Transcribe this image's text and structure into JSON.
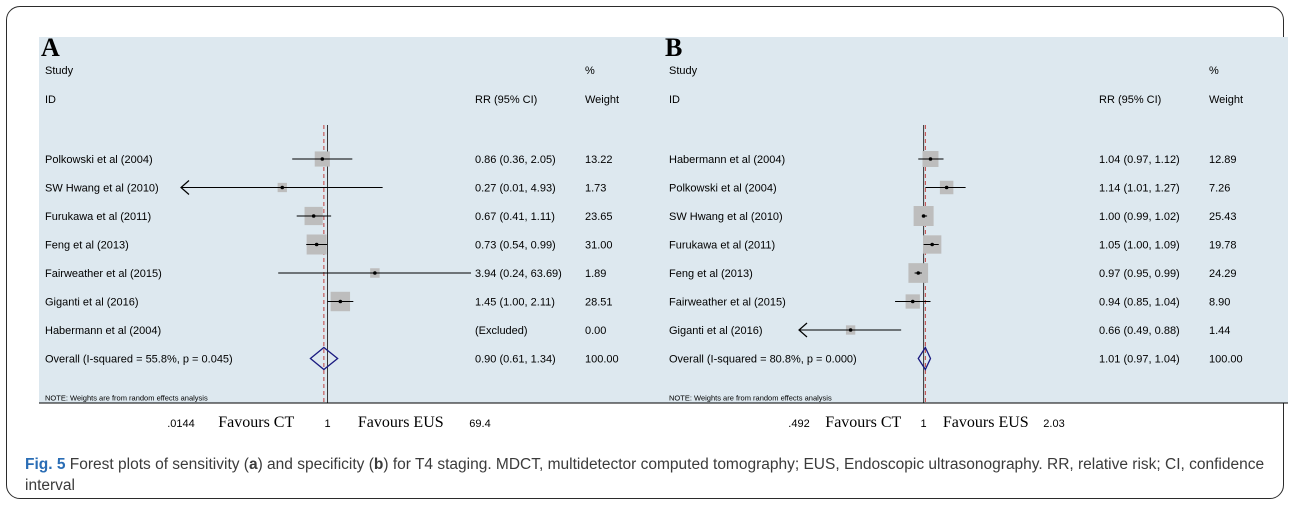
{
  "caption": {
    "fig": "Fig. 5",
    "parts": [
      "Forest plots of sensitivity (",
      "a",
      ") and specificity (",
      "b",
      ") for T4 staging. MDCT, multidetector computed tomography; EUS, Endoscopic ultrasonography. RR, relative risk; CI, confidence interval"
    ]
  },
  "colors": {
    "background": "#dde8ef",
    "box": "#bdbdbd",
    "diamond": "#1a1a80",
    "reference": "#c04040",
    "line": "#000000"
  },
  "chart_data": [
    {
      "type": "forest",
      "panel_label": "A",
      "headers": {
        "study": "Study",
        "id": "ID",
        "rr": "RR (95% CI)",
        "pct": "%",
        "weight": "Weight"
      },
      "scale": "log",
      "xlim": [
        0.0144,
        69.4
      ],
      "x_ticks": [
        ".0144",
        "1",
        "69.4"
      ],
      "favours_left": "Favours CT",
      "favours_right": "Favours EUS",
      "overall_rr": 0.9,
      "rows": [
        {
          "study": "Polkowski et al (2004)",
          "rr": 0.86,
          "lo": 0.36,
          "hi": 2.05,
          "weight_val": 13.22,
          "rr_text": "0.86 (0.36, 2.05)",
          "weight": "13.22"
        },
        {
          "study": "SW Hwang et al (2010)",
          "rr": 0.27,
          "lo": 0.01,
          "hi": 4.93,
          "weight_val": 1.73,
          "rr_text": "0.27 (0.01, 4.93)",
          "weight": "1.73"
        },
        {
          "study": "Furukawa et al  (2011)",
          "rr": 0.67,
          "lo": 0.41,
          "hi": 1.11,
          "weight_val": 23.65,
          "rr_text": "0.67 (0.41, 1.11)",
          "weight": "23.65"
        },
        {
          "study": "Feng et al (2013)",
          "rr": 0.73,
          "lo": 0.54,
          "hi": 0.99,
          "weight_val": 31.0,
          "rr_text": "0.73 (0.54, 0.99)",
          "weight": "31.00"
        },
        {
          "study": "Fairweather et al (2015)",
          "rr": 3.94,
          "lo": 0.24,
          "hi": 63.69,
          "weight_val": 1.89,
          "rr_text": "3.94 (0.24, 63.69)",
          "weight": "1.89"
        },
        {
          "study": "Giganti et al (2016)",
          "rr": 1.45,
          "lo": 1.0,
          "hi": 2.11,
          "weight_val": 28.51,
          "rr_text": "1.45 (1.00, 2.11)",
          "weight": "28.51"
        },
        {
          "study": "Habermann et al (2004)",
          "excluded": true,
          "rr_text": "(Excluded)",
          "weight": "0.00"
        }
      ],
      "overall": {
        "label": "Overall  (I-squared = 55.8%, p = 0.045)",
        "rr": 0.9,
        "lo": 0.61,
        "hi": 1.34,
        "rr_text": "0.90 (0.61, 1.34)",
        "weight": "100.00"
      },
      "note": "NOTE: Weights are from random effects analysis"
    },
    {
      "type": "forest",
      "panel_label": "B",
      "headers": {
        "study": "Study",
        "id": "ID",
        "rr": "RR (95% CI)",
        "pct": "%",
        "weight": "Weight"
      },
      "scale": "log",
      "xlim": [
        0.492,
        2.03
      ],
      "x_ticks": [
        ".492",
        "1",
        "2.03"
      ],
      "favours_left": "Favours CT",
      "favours_right": "Favours EUS",
      "overall_rr": 1.01,
      "rows": [
        {
          "study": "Habermann et al (2004)",
          "rr": 1.04,
          "lo": 0.97,
          "hi": 1.12,
          "weight_val": 12.89,
          "rr_text": "1.04 (0.97, 1.12)",
          "weight": "12.89"
        },
        {
          "study": "Polkowski et al (2004)",
          "rr": 1.14,
          "lo": 1.01,
          "hi": 1.27,
          "weight_val": 7.26,
          "rr_text": "1.14 (1.01, 1.27)",
          "weight": "7.26"
        },
        {
          "study": "SW Hwang et al (2010)",
          "rr": 1.0,
          "lo": 0.99,
          "hi": 1.02,
          "weight_val": 25.43,
          "rr_text": "1.00 (0.99, 1.02)",
          "weight": "25.43"
        },
        {
          "study": "Furukawa et al  (2011)",
          "rr": 1.05,
          "lo": 1.0,
          "hi": 1.09,
          "weight_val": 19.78,
          "rr_text": "1.05 (1.00, 1.09)",
          "weight": "19.78"
        },
        {
          "study": "Feng et al (2013)",
          "rr": 0.97,
          "lo": 0.95,
          "hi": 0.99,
          "weight_val": 24.29,
          "rr_text": "0.97 (0.95, 0.99)",
          "weight": "24.29"
        },
        {
          "study": "Fairweather et al (2015)",
          "rr": 0.94,
          "lo": 0.85,
          "hi": 1.04,
          "weight_val": 8.9,
          "rr_text": "0.94 (0.85, 1.04)",
          "weight": "8.90"
        },
        {
          "study": "Giganti et al (2016)",
          "rr": 0.66,
          "lo": 0.49,
          "hi": 0.88,
          "weight_val": 1.44,
          "rr_text": "0.66 (0.49, 0.88)",
          "weight": "1.44"
        }
      ],
      "overall": {
        "label": "Overall  (I-squared = 80.8%, p = 0.000)",
        "rr": 1.01,
        "lo": 0.97,
        "hi": 1.04,
        "rr_text": "1.01 (0.97, 1.04)",
        "weight": "100.00"
      },
      "note": "NOTE: Weights are from random effects analysis"
    }
  ]
}
